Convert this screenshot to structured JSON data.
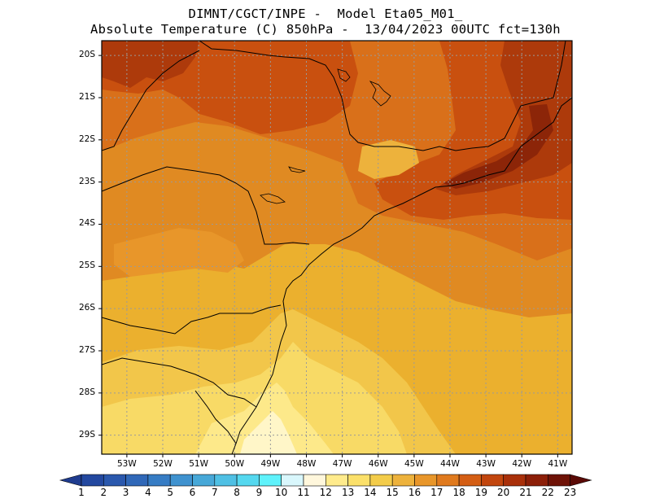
{
  "title_line1": "DIMNT/CGCT/INPE -  Model Eta05_M01_",
  "title_line2": "Absolute Temperature (C) 850hPa -  13/04/2023 00UTC fct=130h",
  "lat_labels": [
    "20S",
    "21S",
    "22S",
    "23S",
    "24S",
    "25S",
    "26S",
    "27S",
    "28S",
    "29S"
  ],
  "lon_labels": [
    "53W",
    "52W",
    "51W",
    "50W",
    "49W",
    "48W",
    "47W",
    "46W",
    "45W",
    "44W",
    "43W",
    "42W",
    "41W"
  ],
  "colorbar": {
    "labels": [
      "1",
      "2",
      "3",
      "4",
      "5",
      "6",
      "7",
      "8",
      "9",
      "10",
      "11",
      "12",
      "13",
      "14",
      "15",
      "16",
      "17",
      "18",
      "19",
      "20",
      "21",
      "22",
      "23"
    ],
    "colors": [
      "#1f3c8f",
      "#23489f",
      "#2a58ad",
      "#3068b8",
      "#367cc4",
      "#3f92cf",
      "#47a8d8",
      "#4fc0e4",
      "#55d8ef",
      "#5ff2fb",
      "#d9f7fc",
      "#fff7dc",
      "#ffeb8c",
      "#fbe06a",
      "#f3cc4a",
      "#edb23c",
      "#e8962a",
      "#e07a1e",
      "#d45e14",
      "#c2460e",
      "#a9300a",
      "#8c1f08",
      "#6e1206",
      "#5a0a06"
    ]
  }
}
